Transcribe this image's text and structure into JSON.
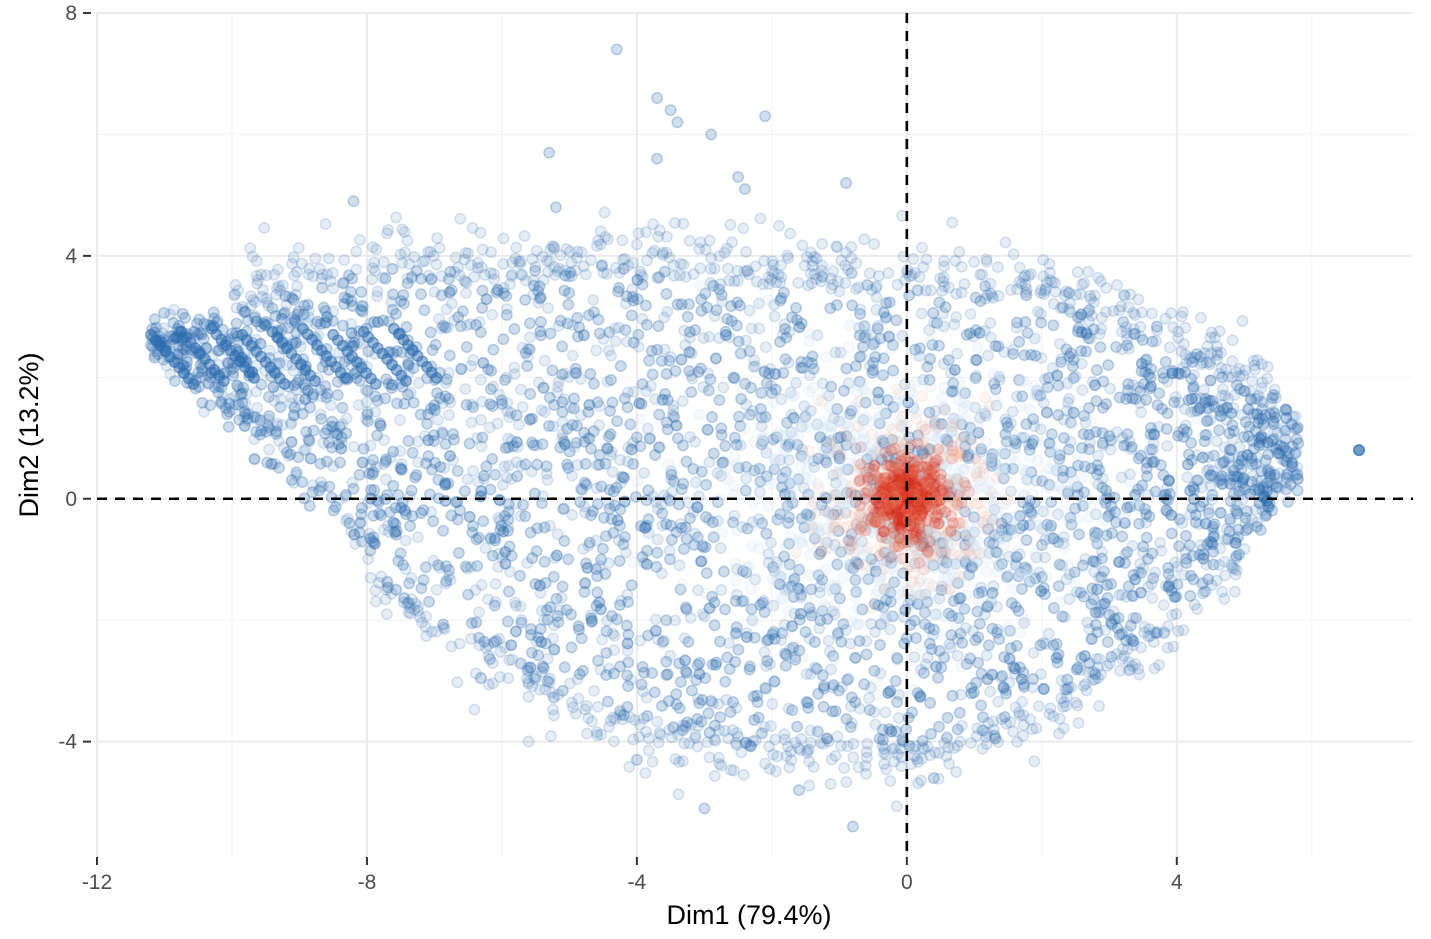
{
  "chart_data": {
    "type": "scatter",
    "title": "",
    "xlabel": "Dim1 (79.4%)",
    "ylabel": "Dim2 (13.2%)",
    "xlim": [
      -12,
      7.5
    ],
    "ylim": [
      -5.9,
      8
    ],
    "xticks": [
      -12,
      -8,
      -4,
      0,
      4
    ],
    "yticks": [
      -4,
      0,
      4,
      8
    ],
    "x_tick_labels": [
      "-12",
      "-8",
      "-4",
      "0",
      "4"
    ],
    "y_tick_labels": [
      "-4",
      "0",
      "4",
      "8"
    ],
    "grid": true,
    "reference_lines": {
      "x": 0,
      "y": 0,
      "style": "dashed"
    },
    "point_color": "#2b6cb0",
    "density_highlight_color": "#d7301f",
    "point_opacity": 0.12,
    "density_center": [
      0,
      0
    ],
    "cloud_shape": {
      "left_tip": [
        -11.2,
        2.6
      ],
      "upper_edge": [
        [
          -11.2,
          2.6
        ],
        [
          -8,
          3.6
        ],
        [
          -4,
          3.6
        ],
        [
          0,
          3.4
        ],
        [
          2,
          3.2
        ],
        [
          4,
          2.4
        ],
        [
          5.8,
          1.2
        ]
      ],
      "lower_edge": [
        [
          -11.2,
          2.6
        ],
        [
          -9,
          0.2
        ],
        [
          -7,
          -2.0
        ],
        [
          -4,
          -3.6
        ],
        [
          0,
          -4.1
        ],
        [
          2,
          -3.4
        ],
        [
          4,
          -1.8
        ],
        [
          5.8,
          0.2
        ]
      ]
    },
    "outliers": [
      [
        -4.3,
        7.4
      ],
      [
        -3.7,
        6.6
      ],
      [
        -3.5,
        6.4
      ],
      [
        -3.4,
        6.2
      ],
      [
        -2.9,
        6.0
      ],
      [
        -2.1,
        6.3
      ],
      [
        -5.3,
        5.7
      ],
      [
        -3.7,
        5.6
      ],
      [
        -2.5,
        5.3
      ],
      [
        -2.4,
        5.1
      ],
      [
        -8.2,
        4.9
      ],
      [
        -5.2,
        4.8
      ],
      [
        -0.9,
        5.2
      ],
      [
        6.7,
        0.8
      ],
      [
        -3.0,
        -5.1
      ],
      [
        -0.8,
        -5.4
      ],
      [
        0.4,
        -4.6
      ],
      [
        -1.6,
        -4.8
      ],
      [
        4.2,
        -1.6
      ],
      [
        1.3,
        -3.9
      ],
      [
        -4.0,
        -4.3
      ],
      [
        3.1,
        2.5
      ]
    ]
  }
}
